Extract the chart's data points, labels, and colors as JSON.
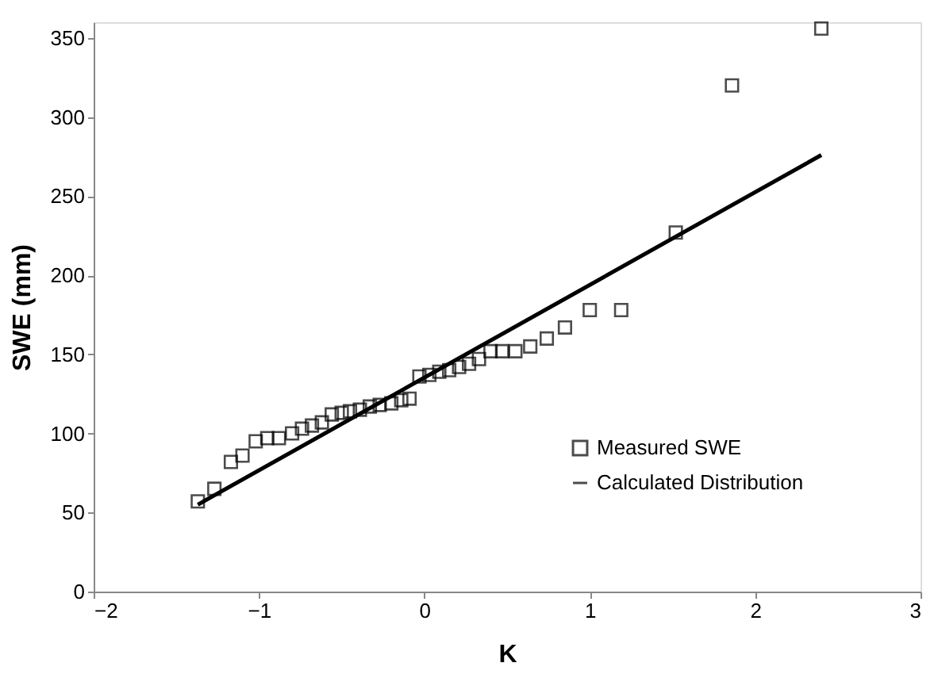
{
  "chart_data": {
    "type": "scatter",
    "xlabel": "K",
    "ylabel": "SWE (mm)",
    "xlim": [
      -2,
      3
    ],
    "xticks": [
      -2,
      -1,
      0,
      1,
      2,
      3
    ],
    "ylim": [
      0,
      360
    ],
    "yticks": [
      0,
      50,
      100,
      150,
      200,
      250,
      300,
      350
    ],
    "grid": false,
    "legend": "right",
    "series": [
      {
        "name": "Measured SWE",
        "marker": "square",
        "color": "#000000",
        "x": [
          -1.37,
          -1.27,
          -1.17,
          -1.1,
          -1.02,
          -0.95,
          -0.88,
          -0.8,
          -0.74,
          -0.68,
          -0.62,
          -0.56,
          -0.5,
          -0.45,
          -0.39,
          -0.33,
          -0.27,
          -0.2,
          -0.14,
          -0.09,
          -0.03,
          0.03,
          0.09,
          0.15,
          0.21,
          0.27,
          0.33,
          0.4,
          0.47,
          0.55,
          0.64,
          0.74,
          0.85,
          1.0,
          1.19,
          1.52,
          1.86,
          2.4
        ],
        "values": [
          57,
          65,
          82,
          86,
          95,
          97,
          97,
          100,
          103,
          105,
          107,
          112,
          113,
          114,
          115,
          117,
          118,
          119,
          121,
          122,
          136,
          137,
          139,
          140,
          142,
          144,
          147,
          152,
          152,
          152,
          155,
          160,
          167,
          178,
          178,
          227,
          320,
          356
        ]
      },
      {
        "name": "Calculated Distribution",
        "type": "line",
        "marker": "none",
        "line_style": "solid",
        "color": "#000000",
        "x": [
          -1.37,
          2.4
        ],
        "values": [
          55,
          276
        ]
      }
    ]
  }
}
